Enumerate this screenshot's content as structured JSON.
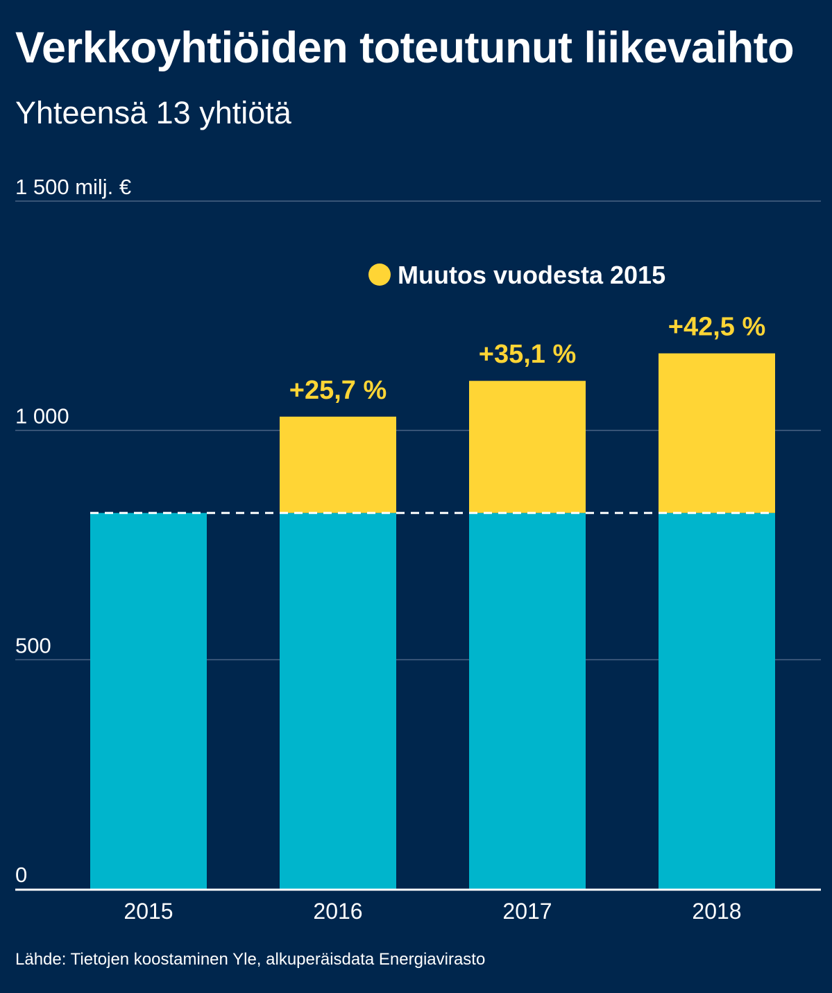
{
  "title": "Verkkoyhtiöiden toteutunut liikevaihto",
  "subtitle": "Yhteensä 13 yhtiötä",
  "source": "Lähde: Tietojen koostaminen Yle, alkuperäisdata Energiavirasto",
  "colors": {
    "background": "#00264d",
    "base_bar": "#00b5cc",
    "change_bar": "#ffd535",
    "text": "#ffffff",
    "gridline": "#4a6485"
  },
  "chart_data": {
    "type": "bar",
    "stacked": true,
    "categories": [
      "2015",
      "2016",
      "2017",
      "2018"
    ],
    "series": [
      {
        "name": "",
        "values": [
          820,
          820,
          820,
          820
        ]
      },
      {
        "name": "Muutos vuodesta 2015",
        "values": [
          0,
          210,
          288,
          348
        ]
      }
    ],
    "totals": [
      820,
      1030,
      1108,
      1168
    ],
    "data_labels": [
      "",
      "+25,7 %",
      "+35,1 %",
      "+42,5 %"
    ],
    "yticks": [
      {
        "value": 0,
        "label": "0"
      },
      {
        "value": 500,
        "label": "500"
      },
      {
        "value": 1000,
        "label": "1 000"
      },
      {
        "value": 1500,
        "label": "1 500 milj. €"
      }
    ],
    "ylim": [
      0,
      1500
    ],
    "baseline_value": 820,
    "legend": {
      "label": "Muutos vuodesta 2015",
      "position": "top-right"
    },
    "grid": true
  }
}
